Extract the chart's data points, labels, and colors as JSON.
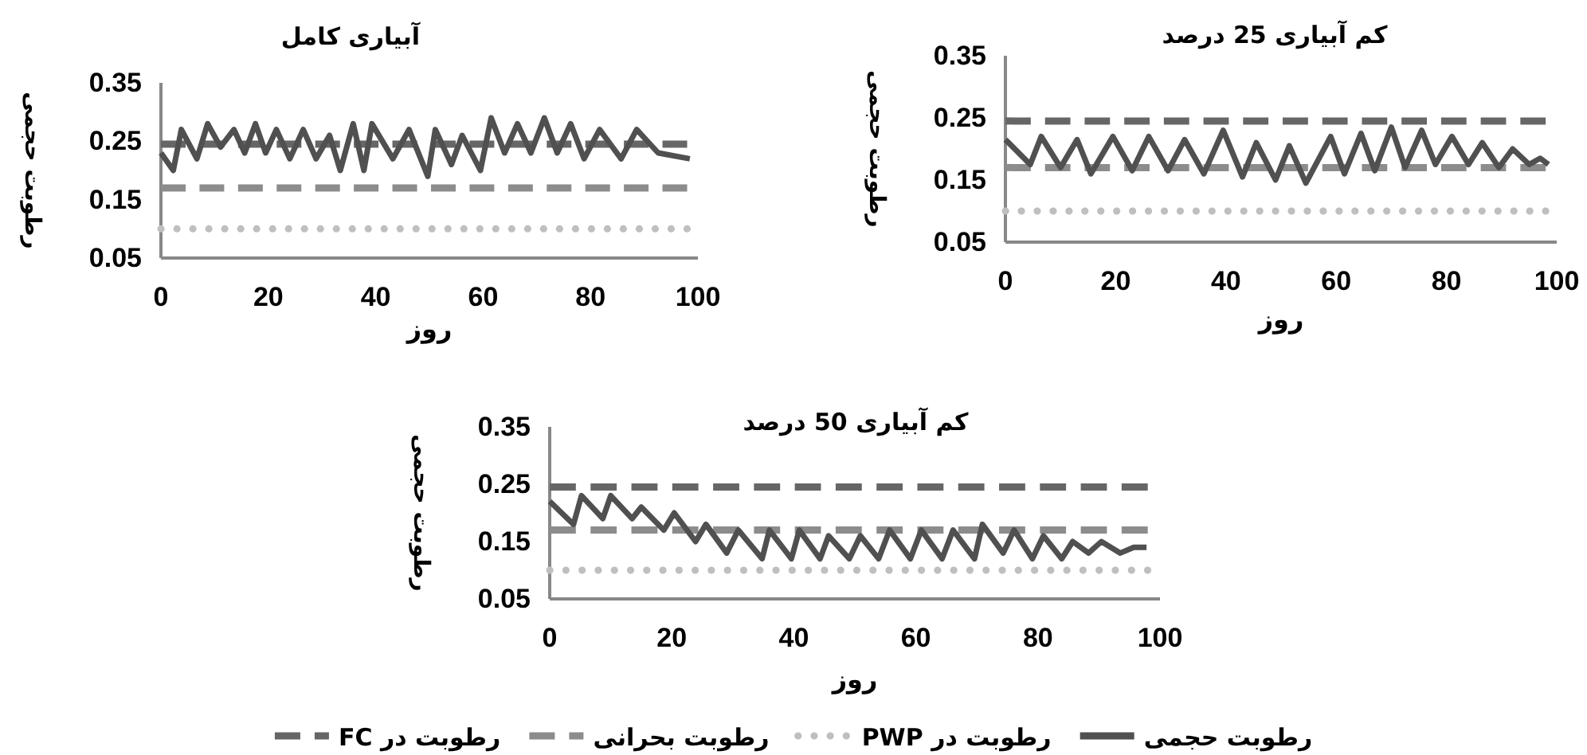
{
  "chart_data": [
    {
      "type": "line",
      "title": "آبیاری کامل",
      "xlabel": "روز",
      "ylabel": "رطوبت حجمی",
      "xlim": [
        0,
        100
      ],
      "xticks": [
        0,
        20,
        40,
        60,
        80,
        100
      ],
      "ylim": [
        0.05,
        0.35
      ],
      "yticks": [
        0.05,
        0.15,
        0.25,
        0.35
      ],
      "series": [
        {
          "color": "#666666",
          "line_style": "dashed",
          "x": [
            0,
            98
          ],
          "values": [
            0.245,
            0.245
          ]
        },
        {
          "color": "#8c8c8c",
          "line_style": "dashed",
          "x": [
            0,
            98
          ],
          "values": [
            0.17,
            0.17
          ]
        },
        {
          "color": "#bfbfbf",
          "line_style": "dotted",
          "x": [
            0,
            98
          ],
          "values": [
            0.1,
            0.1
          ]
        },
        {
          "color": "#505050",
          "line_style": "solid",
          "x": [
            0,
            2.3,
            3.8,
            6.7,
            8.7,
            11.1,
            13.6,
            15.6,
            17.6,
            19.5,
            21.5,
            24,
            26.5,
            28.9,
            31.4,
            33.4,
            35.8,
            37.8,
            39.3,
            43.2,
            46.2,
            49.7,
            51.1,
            54.1,
            56.1,
            59.5,
            61.5,
            64,
            66.4,
            68.9,
            71.4,
            73.8,
            76.3,
            78.8,
            81.7,
            85.7,
            88.6,
            92.6,
            98.5
          ],
          "values": [
            0.23,
            0.2,
            0.27,
            0.22,
            0.28,
            0.24,
            0.27,
            0.23,
            0.28,
            0.23,
            0.27,
            0.22,
            0.27,
            0.22,
            0.26,
            0.2,
            0.28,
            0.2,
            0.28,
            0.22,
            0.27,
            0.19,
            0.27,
            0.21,
            0.26,
            0.2,
            0.29,
            0.23,
            0.28,
            0.23,
            0.29,
            0.23,
            0.28,
            0.22,
            0.27,
            0.22,
            0.27,
            0.23,
            0.22
          ]
        }
      ]
    },
    {
      "type": "line",
      "title": "کم آبیاری 25 درصد",
      "xlabel": "روز",
      "ylabel": "رطوبت حجمی",
      "xlim": [
        0,
        100
      ],
      "xticks": [
        0,
        20,
        40,
        60,
        80,
        100
      ],
      "ylim": [
        0.05,
        0.35
      ],
      "yticks": [
        0.05,
        0.15,
        0.25,
        0.35
      ],
      "series": [
        {
          "color": "#666666",
          "line_style": "dashed",
          "x": [
            0,
            98
          ],
          "values": [
            0.245,
            0.245
          ]
        },
        {
          "color": "#8c8c8c",
          "line_style": "dashed",
          "x": [
            0,
            98
          ],
          "values": [
            0.17,
            0.17
          ]
        },
        {
          "color": "#bfbfbf",
          "line_style": "dotted",
          "x": [
            0,
            98
          ],
          "values": [
            0.1,
            0.1
          ]
        },
        {
          "color": "#505050",
          "line_style": "solid",
          "x": [
            0,
            4.5,
            6.5,
            10,
            13,
            15.5,
            19.5,
            23,
            26,
            29.5,
            32.5,
            36,
            39.5,
            43,
            45.5,
            49,
            51.5,
            54.5,
            59,
            61.5,
            64.5,
            67,
            70,
            72.5,
            75.5,
            78,
            81,
            84,
            86.5,
            89.5,
            92,
            95,
            97,
            98.5
          ],
          "values": [
            0.215,
            0.175,
            0.22,
            0.17,
            0.215,
            0.16,
            0.22,
            0.165,
            0.22,
            0.165,
            0.215,
            0.16,
            0.23,
            0.155,
            0.21,
            0.15,
            0.205,
            0.145,
            0.22,
            0.16,
            0.225,
            0.165,
            0.235,
            0.17,
            0.23,
            0.175,
            0.22,
            0.175,
            0.21,
            0.17,
            0.2,
            0.175,
            0.185,
            0.175
          ]
        }
      ]
    },
    {
      "type": "line",
      "title": "کم آبیاری 50 درصد",
      "xlabel": "روز",
      "ylabel": "رطوبت حجمی",
      "xlim": [
        0,
        100
      ],
      "xticks": [
        0,
        20,
        40,
        60,
        80,
        100
      ],
      "ylim": [
        0.05,
        0.35
      ],
      "yticks": [
        0.05,
        0.15,
        0.25,
        0.35
      ],
      "legend": "bottom",
      "series": [
        {
          "name": "رطوبت در FC",
          "color": "#666666",
          "line_style": "dashed",
          "x": [
            0,
            98
          ],
          "values": [
            0.245,
            0.245
          ]
        },
        {
          "name": "رطوبت بحرانی",
          "color": "#8c8c8c",
          "line_style": "dashed",
          "x": [
            0,
            98
          ],
          "values": [
            0.17,
            0.17
          ]
        },
        {
          "name": "رطوبت در PWP",
          "color": "#bfbfbf",
          "line_style": "dotted",
          "x": [
            0,
            98
          ],
          "values": [
            0.1,
            0.1
          ]
        },
        {
          "name": "رطوبت حجمی",
          "color": "#505050",
          "line_style": "solid",
          "x": [
            0,
            3.9,
            5.2,
            8.7,
            10,
            13.5,
            15,
            18.7,
            20.4,
            23.9,
            25.6,
            29,
            30.9,
            34.8,
            36,
            39.6,
            40.9,
            44.3,
            45.7,
            49.1,
            50.9,
            53.9,
            55.7,
            59.1,
            60.9,
            64.3,
            66.1,
            69.6,
            70.9,
            74.3,
            76.1,
            79.1,
            80.9,
            83.9,
            85.7,
            88.3,
            90.4,
            93.5,
            95.7,
            97.8
          ],
          "values": [
            0.22,
            0.18,
            0.23,
            0.19,
            0.23,
            0.19,
            0.21,
            0.17,
            0.2,
            0.15,
            0.18,
            0.13,
            0.17,
            0.12,
            0.17,
            0.12,
            0.17,
            0.12,
            0.16,
            0.12,
            0.16,
            0.12,
            0.17,
            0.12,
            0.17,
            0.12,
            0.17,
            0.12,
            0.18,
            0.13,
            0.17,
            0.12,
            0.16,
            0.12,
            0.15,
            0.13,
            0.15,
            0.13,
            0.14,
            0.14
          ]
        }
      ]
    }
  ]
}
